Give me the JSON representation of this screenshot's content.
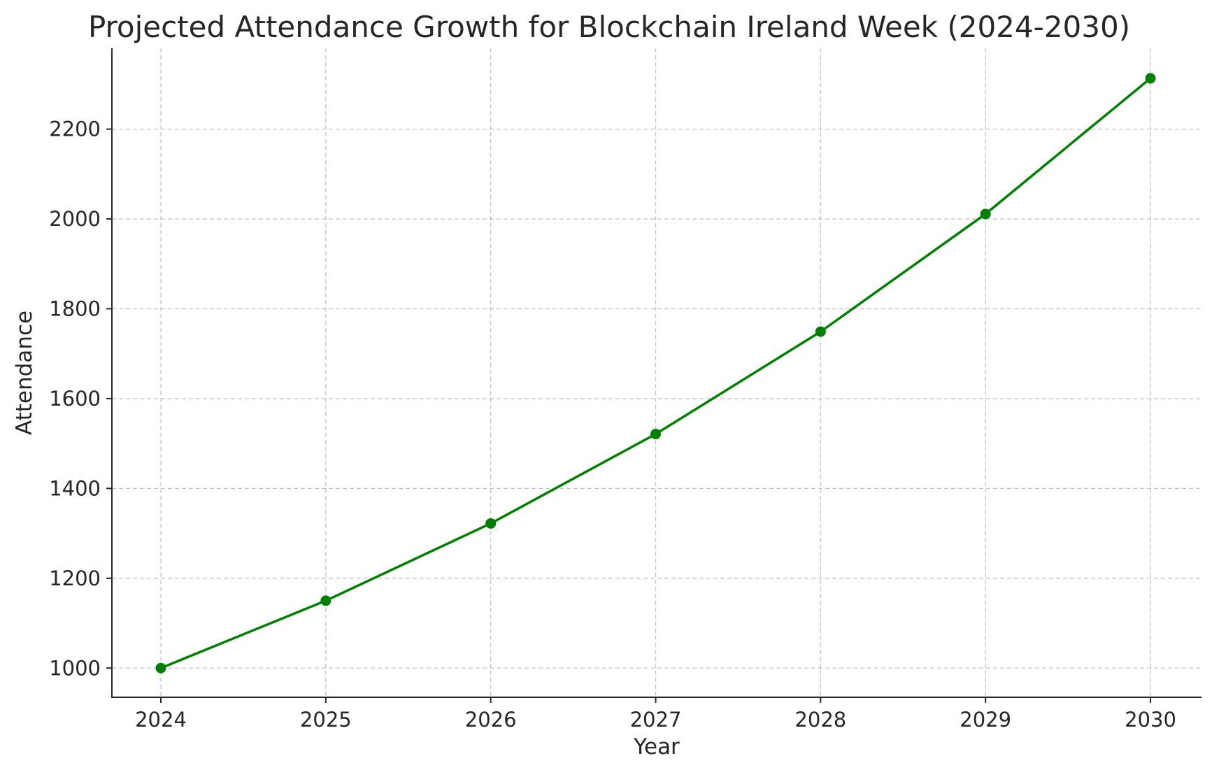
{
  "chart_data": {
    "type": "line",
    "title": "Projected Attendance Growth for Blockchain Ireland Week (2024-2030)",
    "xlabel": "Year",
    "ylabel": "Attendance",
    "x": [
      "2024",
      "2025",
      "2026",
      "2027",
      "2028",
      "2029",
      "2030"
    ],
    "series": [
      {
        "name": "Attendance",
        "values": [
          1000,
          1150,
          1322,
          1521,
          1749,
          2011,
          2313
        ],
        "color": "#008000",
        "marker": "circle"
      }
    ],
    "yticks": [
      "1000",
      "1200",
      "1400",
      "1600",
      "1800",
      "2000",
      "2200"
    ],
    "ylim": [
      935,
      2380
    ],
    "grid": true,
    "legend": "none"
  }
}
